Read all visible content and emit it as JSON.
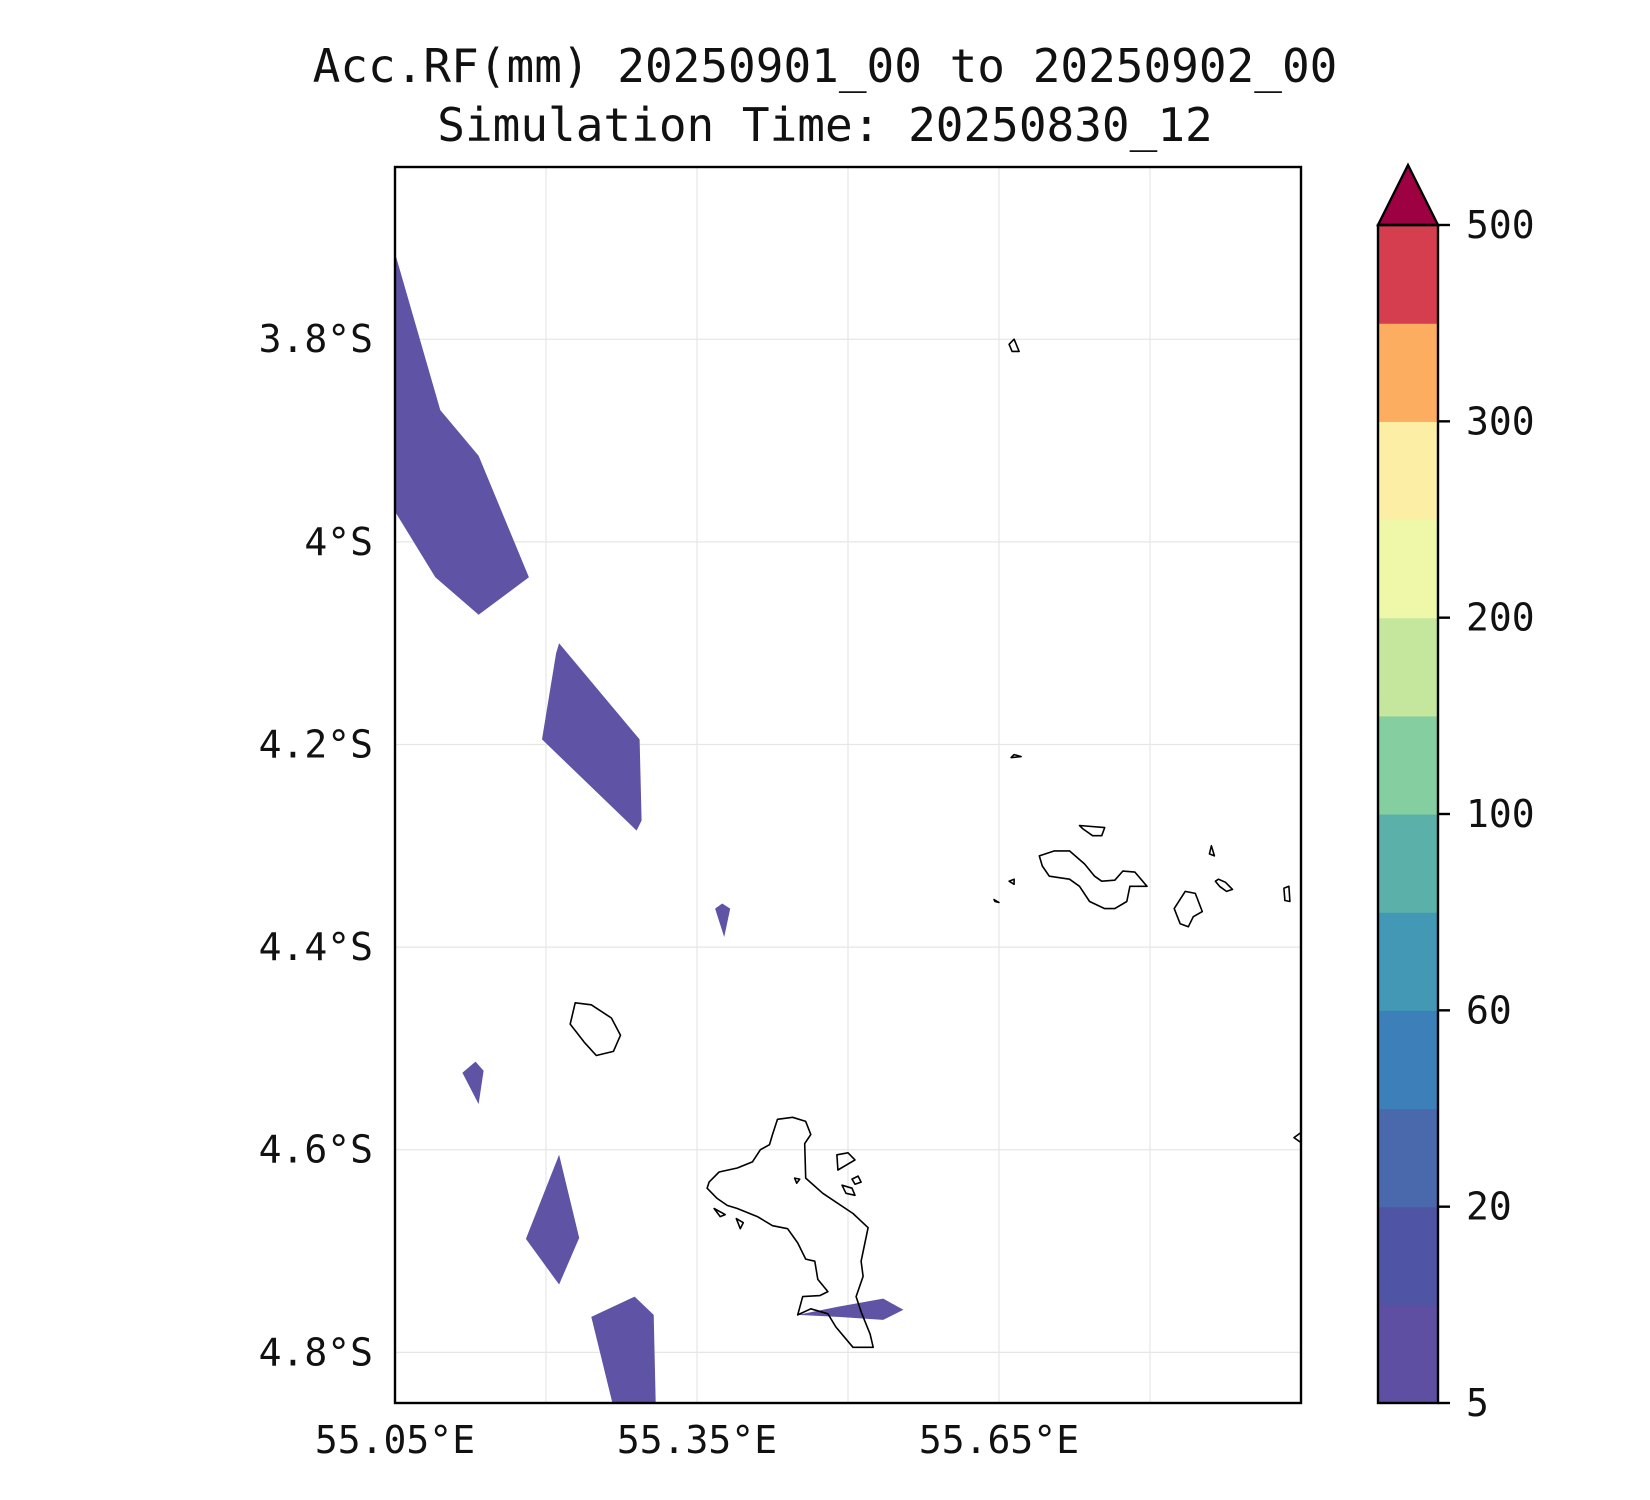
{
  "title": {
    "line1": "Acc.RF(mm) 20250901_00 to 20250902_00",
    "line2": "Simulation Time: 20250830_12"
  },
  "map": {
    "lon_range": [
      55.05,
      55.95
    ],
    "lat_range": [
      -4.85,
      -3.63
    ],
    "x_ticks": [
      {
        "value": 55.05,
        "label": "55.05°E"
      },
      {
        "value": 55.35,
        "label": "55.35°E"
      },
      {
        "value": 55.65,
        "label": "55.65°E"
      }
    ],
    "x_grid": [
      55.05,
      55.2,
      55.35,
      55.5,
      55.65,
      55.8,
      55.95
    ],
    "y_ticks": [
      {
        "value": -3.8,
        "label": "3.8°S"
      },
      {
        "value": -4.0,
        "label": "4°S"
      },
      {
        "value": -4.2,
        "label": "4.2°S"
      },
      {
        "value": -4.4,
        "label": "4.4°S"
      },
      {
        "value": -4.6,
        "label": "4.6°S"
      },
      {
        "value": -4.8,
        "label": "4.8°S"
      }
    ],
    "rain_color": "#5e53a4",
    "rain_areas": [
      {
        "name": "rain-area-north",
        "points": [
          [
            55.05,
            -3.715
          ],
          [
            55.095,
            -3.87
          ],
          [
            55.133,
            -3.915
          ],
          [
            55.183,
            -4.035
          ],
          [
            55.133,
            -4.072
          ],
          [
            55.09,
            -4.035
          ],
          [
            55.05,
            -3.97
          ]
        ]
      },
      {
        "name": "rain-area-north-central",
        "points": [
          [
            55.21,
            -4.11
          ],
          [
            55.213,
            -4.1
          ],
          [
            55.293,
            -4.195
          ],
          [
            55.295,
            -4.275
          ],
          [
            55.29,
            -4.285
          ],
          [
            55.196,
            -4.195
          ]
        ]
      },
      {
        "name": "rain-area-small-east",
        "points": [
          [
            55.368,
            -4.362
          ],
          [
            55.375,
            -4.357
          ],
          [
            55.383,
            -4.362
          ],
          [
            55.377,
            -4.39
          ]
        ]
      },
      {
        "name": "rain-area-small-west",
        "points": [
          [
            55.117,
            -4.524
          ],
          [
            55.13,
            -4.513
          ],
          [
            55.138,
            -4.522
          ],
          [
            55.133,
            -4.555
          ]
        ]
      },
      {
        "name": "rain-area-south-west",
        "points": [
          [
            55.213,
            -4.605
          ],
          [
            55.233,
            -4.687
          ],
          [
            55.213,
            -4.733
          ],
          [
            55.18,
            -4.688
          ]
        ]
      },
      {
        "name": "rain-area-south",
        "points": [
          [
            55.245,
            -4.765
          ],
          [
            55.288,
            -4.745
          ],
          [
            55.307,
            -4.763
          ],
          [
            55.309,
            -4.85
          ],
          [
            55.266,
            -4.85
          ]
        ]
      },
      {
        "name": "rain-area-mahe-south",
        "points": [
          [
            55.45,
            -4.763
          ],
          [
            55.49,
            -4.755
          ],
          [
            55.535,
            -4.747
          ],
          [
            55.555,
            -4.758
          ],
          [
            55.535,
            -4.768
          ],
          [
            55.49,
            -4.765
          ]
        ]
      }
    ],
    "coastlines": [
      {
        "name": "coastline-silhouette",
        "points": [
          [
            55.229,
            -4.455
          ],
          [
            55.245,
            -4.457
          ],
          [
            55.265,
            -4.47
          ],
          [
            55.274,
            -4.487
          ],
          [
            55.267,
            -4.503
          ],
          [
            55.25,
            -4.507
          ],
          [
            55.238,
            -4.494
          ],
          [
            55.224,
            -4.476
          ]
        ]
      },
      {
        "name": "coastline-mahe",
        "points": [
          [
            55.43,
            -4.57
          ],
          [
            55.445,
            -4.568
          ],
          [
            55.458,
            -4.572
          ],
          [
            55.463,
            -4.585
          ],
          [
            55.457,
            -4.594
          ],
          [
            55.458,
            -4.628
          ],
          [
            55.475,
            -4.643
          ],
          [
            55.505,
            -4.663
          ],
          [
            55.52,
            -4.677
          ],
          [
            55.513,
            -4.71
          ],
          [
            55.515,
            -4.725
          ],
          [
            55.508,
            -4.745
          ],
          [
            55.513,
            -4.76
          ],
          [
            55.522,
            -4.782
          ],
          [
            55.525,
            -4.795
          ],
          [
            55.505,
            -4.795
          ],
          [
            55.488,
            -4.775
          ],
          [
            55.48,
            -4.762
          ],
          [
            55.463,
            -4.757
          ],
          [
            55.45,
            -4.763
          ],
          [
            55.455,
            -4.745
          ],
          [
            55.472,
            -4.744
          ],
          [
            55.48,
            -4.74
          ],
          [
            55.47,
            -4.728
          ],
          [
            55.467,
            -4.71
          ],
          [
            55.458,
            -4.708
          ],
          [
            55.45,
            -4.692
          ],
          [
            55.44,
            -4.678
          ],
          [
            55.425,
            -4.675
          ],
          [
            55.41,
            -4.666
          ],
          [
            55.39,
            -4.658
          ],
          [
            55.38,
            -4.655
          ],
          [
            55.37,
            -4.648
          ],
          [
            55.36,
            -4.638
          ],
          [
            55.362,
            -4.632
          ],
          [
            55.372,
            -4.622
          ],
          [
            55.39,
            -4.618
          ],
          [
            55.405,
            -4.612
          ],
          [
            55.413,
            -4.6
          ],
          [
            55.422,
            -4.595
          ],
          [
            55.425,
            -4.585
          ]
        ]
      },
      {
        "name": "coastline-mahe-east-islet",
        "points": [
          [
            55.489,
            -4.605
          ],
          [
            55.5,
            -4.603
          ],
          [
            55.507,
            -4.61
          ],
          [
            55.49,
            -4.62
          ]
        ]
      },
      {
        "name": "coastline-mahe-islet-2",
        "points": [
          [
            55.494,
            -4.635
          ],
          [
            55.504,
            -4.638
          ],
          [
            55.507,
            -4.645
          ],
          [
            55.498,
            -4.643
          ]
        ]
      },
      {
        "name": "coastline-mahe-islet-3",
        "points": [
          [
            55.504,
            -4.629
          ],
          [
            55.51,
            -4.626
          ],
          [
            55.513,
            -4.632
          ],
          [
            55.507,
            -4.634
          ]
        ]
      },
      {
        "name": "coastline-mahe-islet-4",
        "points": [
          [
            55.447,
            -4.628
          ],
          [
            55.452,
            -4.629
          ],
          [
            55.449,
            -4.633
          ]
        ]
      },
      {
        "name": "coastline-mahe-west-islet-1",
        "points": [
          [
            55.367,
            -4.658
          ],
          [
            55.378,
            -4.664
          ],
          [
            55.373,
            -4.666
          ]
        ]
      },
      {
        "name": "coastline-mahe-west-islet-2",
        "points": [
          [
            55.389,
            -4.668
          ],
          [
            55.396,
            -4.672
          ],
          [
            55.393,
            -4.678
          ]
        ]
      },
      {
        "name": "coastline-praslin",
        "points": [
          [
            55.69,
            -4.31
          ],
          [
            55.705,
            -4.305
          ],
          [
            55.72,
            -4.305
          ],
          [
            55.735,
            -4.318
          ],
          [
            55.745,
            -4.33
          ],
          [
            55.752,
            -4.335
          ],
          [
            55.765,
            -4.334
          ],
          [
            55.773,
            -4.325
          ],
          [
            55.785,
            -4.326
          ],
          [
            55.797,
            -4.34
          ],
          [
            55.78,
            -4.34
          ],
          [
            55.777,
            -4.355
          ],
          [
            55.765,
            -4.362
          ],
          [
            55.755,
            -4.362
          ],
          [
            55.74,
            -4.355
          ],
          [
            55.73,
            -4.34
          ],
          [
            55.72,
            -4.333
          ],
          [
            55.7,
            -4.33
          ],
          [
            55.693,
            -4.32
          ]
        ]
      },
      {
        "name": "coastline-curieuse",
        "points": [
          [
            55.73,
            -4.28
          ],
          [
            55.755,
            -4.282
          ],
          [
            55.752,
            -4.29
          ],
          [
            55.743,
            -4.29
          ],
          [
            55.733,
            -4.283
          ]
        ]
      },
      {
        "name": "coastline-la-digue",
        "points": [
          [
            55.835,
            -4.345
          ],
          [
            55.845,
            -4.347
          ],
          [
            55.852,
            -4.365
          ],
          [
            55.843,
            -4.37
          ],
          [
            55.838,
            -4.38
          ],
          [
            55.83,
            -4.377
          ],
          [
            55.824,
            -4.362
          ]
        ]
      },
      {
        "name": "coastline-felicite",
        "points": [
          [
            55.868,
            -4.333
          ],
          [
            55.875,
            -4.336
          ],
          [
            55.882,
            -4.343
          ],
          [
            55.876,
            -4.345
          ],
          [
            55.869,
            -4.34
          ],
          [
            55.865,
            -4.335
          ]
        ]
      },
      {
        "name": "coastline-aride",
        "points": [
          [
            55.665,
            -4.21
          ],
          [
            55.672,
            -4.212
          ],
          [
            55.662,
            -4.213
          ]
        ]
      },
      {
        "name": "coastline-north-islet",
        "points": [
          [
            55.66,
            -3.805
          ],
          [
            55.665,
            -3.8
          ],
          [
            55.67,
            -3.812
          ],
          [
            55.663,
            -3.812
          ]
        ]
      },
      {
        "name": "coastline-praslin-islet-1",
        "points": [
          [
            55.66,
            -4.335
          ],
          [
            55.665,
            -4.333
          ],
          [
            55.665,
            -4.338
          ]
        ]
      },
      {
        "name": "coastline-praslin-islet-2",
        "points": [
          [
            55.645,
            -4.353
          ],
          [
            55.65,
            -4.356
          ],
          [
            55.646,
            -4.355
          ]
        ]
      },
      {
        "name": "coastline-islet-east-1",
        "points": [
          [
            55.861,
            -4.3
          ],
          [
            55.864,
            -4.31
          ],
          [
            55.859,
            -4.308
          ]
        ]
      },
      {
        "name": "coastline-islet-east-2",
        "points": [
          [
            55.933,
            -4.342
          ],
          [
            55.938,
            -4.34
          ],
          [
            55.939,
            -4.355
          ],
          [
            55.934,
            -4.354
          ]
        ]
      },
      {
        "name": "coastline-islet-east-edge",
        "points": [
          [
            55.95,
            -4.583
          ],
          [
            55.943,
            -4.588
          ],
          [
            55.95,
            -4.593
          ]
        ]
      }
    ]
  },
  "colorbar": {
    "levels": [
      5,
      10,
      20,
      40,
      60,
      80,
      100,
      150,
      200,
      250,
      300,
      400,
      500
    ],
    "colors": [
      "#5e4fa2",
      "#5054a4",
      "#4a69ad",
      "#3c7fb9",
      "#4298b5",
      "#5bb0aa",
      "#85ce9f",
      "#c5e69d",
      "#eef8a8",
      "#fdeea6",
      "#fdad60",
      "#d53e4f"
    ],
    "extend_color": "#9e0142",
    "tick_labels": [
      {
        "value": 5,
        "label": "5"
      },
      {
        "value": 20,
        "label": "20"
      },
      {
        "value": 60,
        "label": "60"
      },
      {
        "value": 100,
        "label": "100"
      },
      {
        "value": 200,
        "label": "200"
      },
      {
        "value": 300,
        "label": "300"
      },
      {
        "value": 500,
        "label": "500"
      }
    ]
  }
}
